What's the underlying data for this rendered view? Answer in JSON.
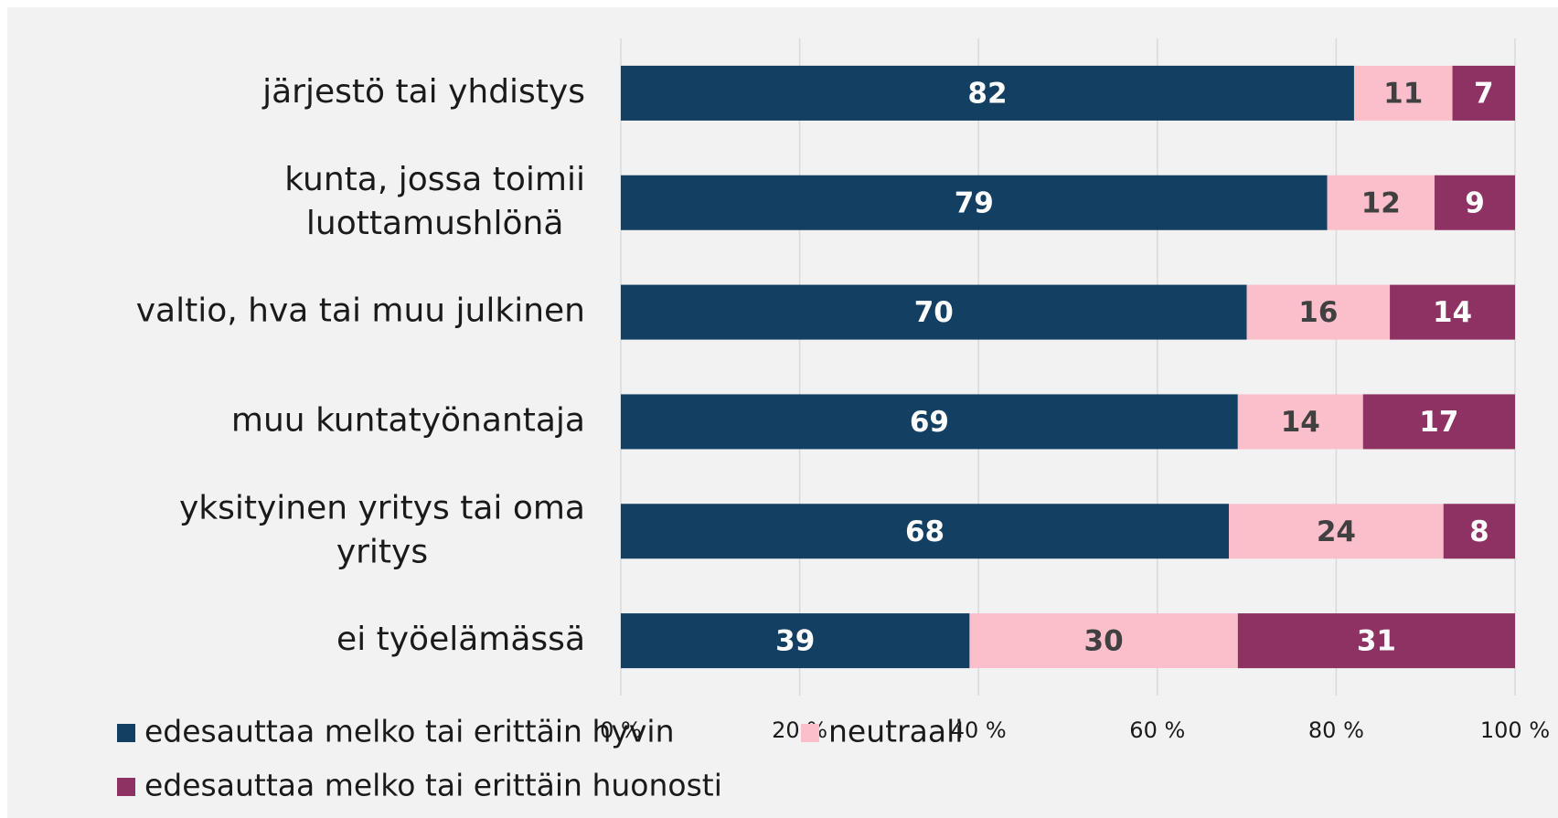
{
  "chart_data": {
    "type": "stacked_barh",
    "categories": [
      [
        "järjestö tai yhdistys"
      ],
      [
        "kunta, jossa toimii",
        "luottamushlönä"
      ],
      [
        "valtio, hva tai muu julkinen"
      ],
      [
        "muu kuntatyönantaja"
      ],
      [
        "yksityinen yritys tai oma",
        "yritys"
      ],
      [
        "ei työelämässä"
      ]
    ],
    "series": [
      {
        "name": "edesauttaa melko tai erittäin hyvin",
        "color": "#133f63",
        "label_color": "#ffffff",
        "values": [
          82,
          79,
          70,
          69,
          68,
          39
        ]
      },
      {
        "name": "neutraali",
        "color": "#fbbfcc",
        "label_color": "#404040",
        "values": [
          11,
          12,
          16,
          14,
          24,
          30
        ]
      },
      {
        "name": "edesauttaa melko tai erittäin huonosti",
        "color": "#8e3263",
        "label_color": "#ffffff",
        "values": [
          7,
          9,
          14,
          17,
          8,
          31
        ]
      }
    ],
    "xlim": [
      0,
      100
    ],
    "xticks": [
      {
        "value": 0,
        "label": "0 %"
      },
      {
        "value": 20,
        "label": "20 %"
      },
      {
        "value": 40,
        "label": "40 %"
      },
      {
        "value": 60,
        "label": "60 %"
      },
      {
        "value": 80,
        "label": "80 %"
      },
      {
        "value": 100,
        "label": "100 %"
      }
    ],
    "grid": true,
    "legend": "bottom"
  }
}
